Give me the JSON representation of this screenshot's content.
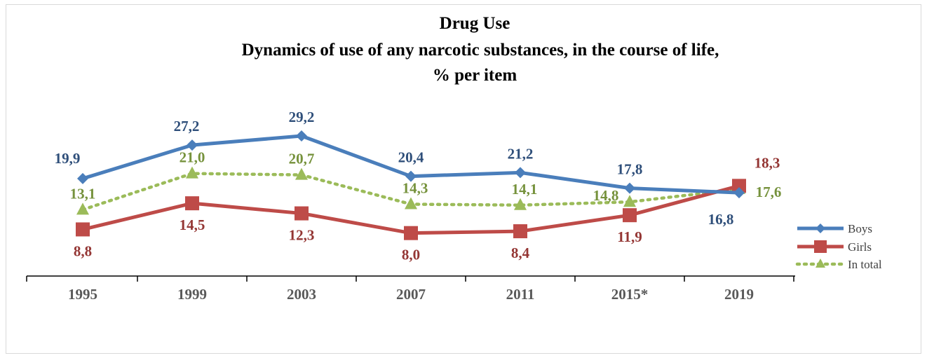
{
  "chart_data": {
    "type": "line",
    "title": "Drug Use",
    "subtitle_lines": [
      "Dynamics of use of any narcotic substances, in the course of life,",
      "% per item"
    ],
    "categories": [
      "1995",
      "1999",
      "2003",
      "2007",
      "2011",
      "2015*",
      "2019"
    ],
    "series": [
      {
        "name": "Boys",
        "values": [
          19.9,
          27.2,
          29.2,
          20.4,
          21.2,
          17.8,
          16.8
        ],
        "labels": [
          "19,9",
          "27,2",
          "29,2",
          "20,4",
          "21,2",
          "17,8",
          "16,8"
        ],
        "color": "#4a7ebb",
        "marker": "diamond",
        "line_style": "solid"
      },
      {
        "name": "Girls",
        "values": [
          8.8,
          14.5,
          12.3,
          8.0,
          8.4,
          11.9,
          18.3
        ],
        "labels": [
          "8,8",
          "14,5",
          "12,3",
          "8,0",
          "8,4",
          "11,9",
          "18,3"
        ],
        "color": "#be4b48",
        "marker": "square",
        "line_style": "solid"
      },
      {
        "name": "In total",
        "values": [
          13.1,
          21.0,
          20.7,
          14.3,
          14.1,
          14.8,
          17.6
        ],
        "labels": [
          "13,1",
          "21,0",
          "20,7",
          "14,3",
          "14,1",
          "14,8",
          "17,6"
        ],
        "color": "#9bbb59",
        "marker": "triangle",
        "line_style": "dotted"
      }
    ],
    "legend_position": "right",
    "grid": false
  }
}
